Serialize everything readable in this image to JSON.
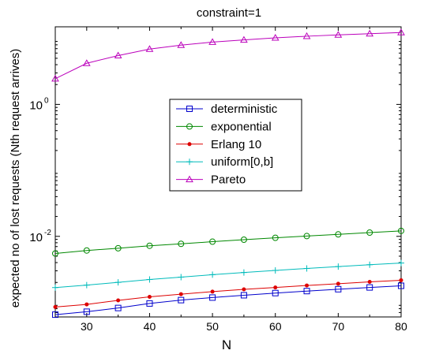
{
  "figure": {
    "background": "#ffffff",
    "plot_background": "#ffffff"
  },
  "chart_data": {
    "type": "line",
    "title": "constraint=1",
    "xlabel": "N",
    "ylabel": "expected no of lost requests (Nth request arrives)",
    "xlim": [
      25,
      80
    ],
    "ylim": [
      0.0006,
      15
    ],
    "y_scale": "log",
    "x_ticks": [
      30,
      40,
      50,
      60,
      70,
      80
    ],
    "y_ticks": [
      {
        "value": 1,
        "base": "10",
        "exp": "0"
      },
      {
        "value": 0.01,
        "base": "10",
        "exp": "-2"
      }
    ],
    "grid": false,
    "legend_position": "center",
    "x": [
      25,
      30,
      35,
      40,
      45,
      50,
      55,
      60,
      65,
      70,
      75,
      80
    ],
    "series": [
      {
        "name": "deterministic",
        "color": "#0000cc",
        "marker": "square",
        "values": [
          0.00065,
          0.00072,
          0.00082,
          0.00096,
          0.00108,
          0.00118,
          0.00128,
          0.00138,
          0.00148,
          0.00158,
          0.00168,
          0.00178
        ]
      },
      {
        "name": "exponential",
        "color": "#008800",
        "marker": "circle",
        "values": [
          0.0055,
          0.0061,
          0.0066,
          0.0072,
          0.0077,
          0.0083,
          0.0089,
          0.0095,
          0.0101,
          0.0107,
          0.0114,
          0.0121
        ]
      },
      {
        "name": "Erlang 10",
        "color": "#dd0000",
        "marker": "dot",
        "values": [
          0.00085,
          0.00093,
          0.00107,
          0.00121,
          0.00133,
          0.00145,
          0.00157,
          0.00168,
          0.0018,
          0.00191,
          0.00204,
          0.00216
        ]
      },
      {
        "name": "uniform[0,b]",
        "color": "#00bbbb",
        "marker": "plus",
        "values": [
          0.00167,
          0.00182,
          0.00201,
          0.00222,
          0.00241,
          0.00262,
          0.00283,
          0.00304,
          0.00326,
          0.00348,
          0.00371,
          0.00394
        ]
      },
      {
        "name": "Pareto",
        "color": "#bb00bb",
        "marker": "triangle",
        "values": [
          2.45,
          4.2,
          5.5,
          6.9,
          7.9,
          8.8,
          9.5,
          10.2,
          10.8,
          11.3,
          11.8,
          12.3
        ]
      }
    ]
  }
}
